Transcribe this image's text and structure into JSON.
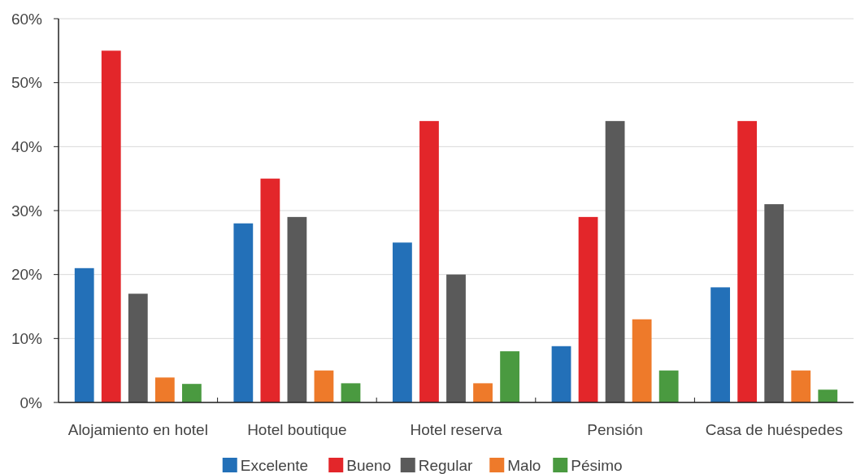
{
  "chart_data": {
    "type": "bar",
    "categories": [
      "Alojamiento en hotel",
      "Hotel boutique",
      "Hotel reserva",
      "Pensión",
      "Casa de huéspedes"
    ],
    "series": [
      {
        "name": "Excelente",
        "color": "#2370b8",
        "values": [
          21,
          28,
          25,
          8.8,
          18
        ]
      },
      {
        "name": "Bueno",
        "color": "#e3262a",
        "values": [
          55,
          35,
          44,
          29,
          44
        ]
      },
      {
        "name": "Regular",
        "color": "#5a5a5a",
        "values": [
          17,
          29,
          20,
          44,
          31
        ]
      },
      {
        "name": "Malo",
        "color": "#ee7a2a",
        "values": [
          3.9,
          5,
          3,
          13,
          5
        ]
      },
      {
        "name": "Pésimo",
        "color": "#4a9a40",
        "values": [
          2.9,
          3,
          8,
          5,
          2
        ]
      }
    ],
    "ylim": [
      0,
      60
    ],
    "yticks": [
      {
        "value": 0,
        "label": "0%"
      },
      {
        "value": 10,
        "label": "10%"
      },
      {
        "value": 20,
        "label": "20%"
      },
      {
        "value": 30,
        "label": "30%"
      },
      {
        "value": 40,
        "label": "40%"
      },
      {
        "value": 50,
        "label": "50%"
      },
      {
        "value": 60,
        "label": "60%"
      }
    ],
    "grid": "y",
    "legend": "bottom"
  }
}
